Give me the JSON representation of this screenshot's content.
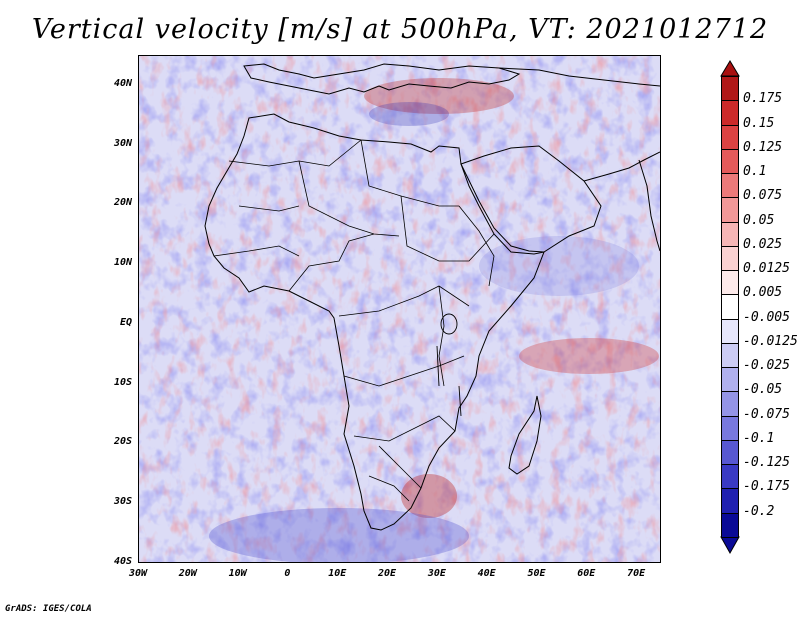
{
  "title": "Vertical velocity [m/s] at 500hPa, VT: 2021012712",
  "credit": "GrADS: IGES/COLA",
  "map": {
    "lon_range": [
      -30,
      75
    ],
    "lat_range": [
      -40,
      45
    ],
    "lat_labels": [
      "40N",
      "30N",
      "20N",
      "10N",
      "EQ",
      "10S",
      "20S",
      "30S",
      "40S"
    ],
    "lon_labels": [
      "30W",
      "20W",
      "10W",
      "0",
      "10E",
      "20E",
      "30E",
      "40E",
      "50E",
      "60E",
      "70E"
    ]
  },
  "colorbar": {
    "labels": [
      "0.175",
      "0.15",
      "0.125",
      "0.1",
      "0.075",
      "0.05",
      "0.025",
      "0.0125",
      "0.005",
      "-0.005",
      "-0.0125",
      "-0.025",
      "-0.05",
      "-0.075",
      "-0.1",
      "-0.125",
      "-0.175",
      "-0.2"
    ],
    "colors": [
      "#b01818",
      "#cc2a2a",
      "#dc4242",
      "#e45a5a",
      "#ec7a7a",
      "#f29898",
      "#f6b6b6",
      "#fad2d2",
      "#fdeaea",
      "#ffffff",
      "#e6e6fb",
      "#ccccf4",
      "#b0b0ee",
      "#9494e6",
      "#7878de",
      "#5858d2",
      "#3a3ac4",
      "#2020b0",
      "#0a0a96"
    ]
  }
}
